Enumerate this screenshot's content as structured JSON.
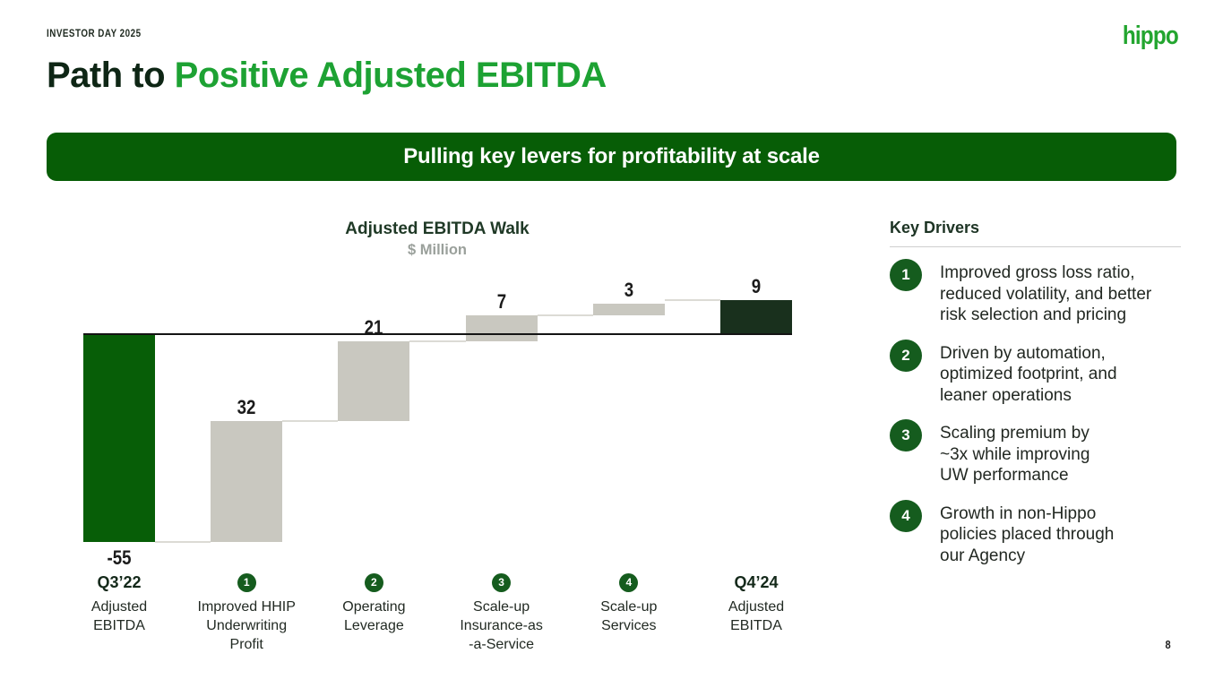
{
  "meta": {
    "eyebrow": "INVESTOR DAY 2025",
    "logo": "hippo",
    "page_number": "8"
  },
  "title": {
    "prefix": "Path to ",
    "highlight": "Positive Adjusted EBITDA"
  },
  "banner": {
    "text": "Pulling key levers for profitability at scale"
  },
  "chart_data": {
    "type": "bar",
    "subtype": "waterfall",
    "title": "Adjusted EBITDA Walk",
    "subtitle": "$ Million",
    "ylim": [
      -55,
      9
    ],
    "gridlines": false,
    "legend": false,
    "categories": [
      {
        "kind": "start",
        "title": "Q3’22",
        "label_lines": [
          "Adjusted",
          "EBITDA"
        ],
        "value": -55,
        "display": "-55"
      },
      {
        "kind": "delta",
        "badge": "1",
        "label_lines": [
          "Improved HHIP",
          "Underwriting",
          "Profit"
        ],
        "value": 32,
        "display": "32"
      },
      {
        "kind": "delta",
        "badge": "2",
        "label_lines": [
          "Operating",
          "Leverage"
        ],
        "value": 21,
        "display": "21"
      },
      {
        "kind": "delta",
        "badge": "3",
        "label_lines": [
          "Scale-up",
          "Insurance-as",
          "-a-Service"
        ],
        "value": 7,
        "display": "7"
      },
      {
        "kind": "delta",
        "badge": "4",
        "label_lines": [
          "Scale-up",
          "Services"
        ],
        "value": 3,
        "display": "3"
      },
      {
        "kind": "total",
        "title": "Q4’24",
        "label_lines": [
          "Adjusted",
          "EBITDA"
        ],
        "value": 9,
        "display": "9"
      }
    ],
    "colors": {
      "start_bar": "#075e07",
      "delta_bar": "#c9c8c0",
      "total_bar": "#19301d",
      "baseline": "#141414",
      "connector": "#dcdbd5",
      "badge": "#155c1e"
    }
  },
  "key_drivers": {
    "heading": "Key Drivers",
    "items": [
      {
        "num": "1",
        "text": "Improved gross loss ratio,\nreduced volatility, and better\nrisk selection and pricing"
      },
      {
        "num": "2",
        "text": "Driven by automation,\noptimized footprint, and\nleaner operations"
      },
      {
        "num": "3",
        "text": "Scaling premium by\n~3x while improving\nUW performance"
      },
      {
        "num": "4",
        "text": "Growth in non-Hippo\npolicies placed through\nour Agency"
      }
    ]
  }
}
